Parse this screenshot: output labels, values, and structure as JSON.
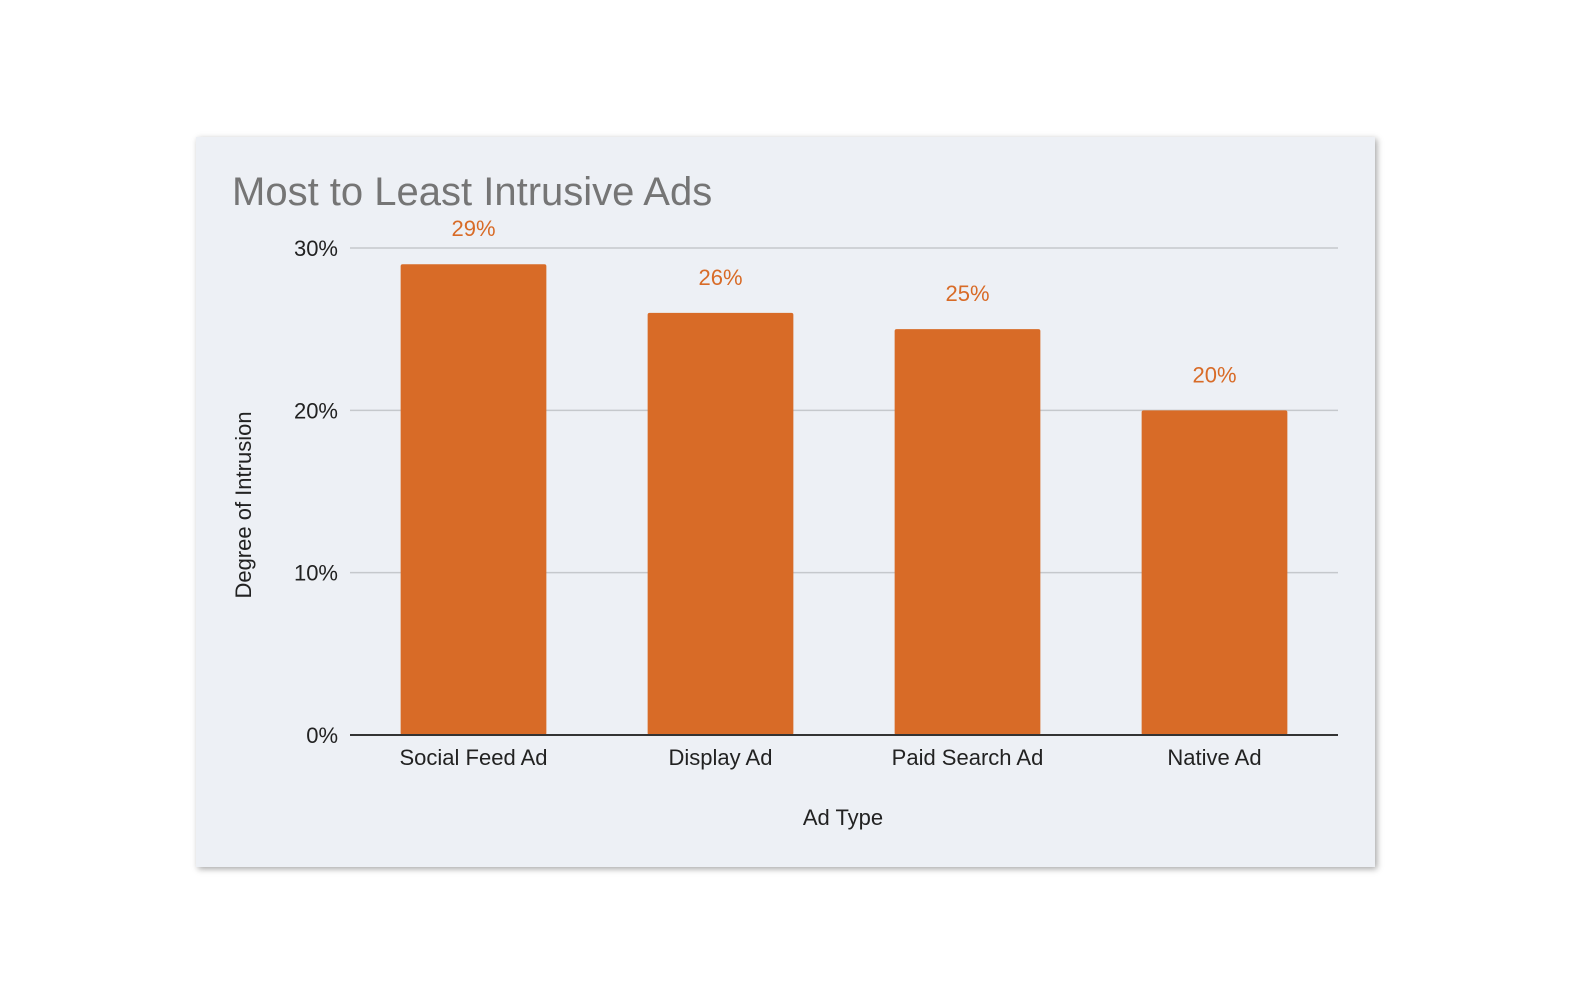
{
  "colors": {
    "bar": "#d86b27",
    "data_label": "#d86b27",
    "grid": "#c5c8cc",
    "baseline": "#333333",
    "card_background": "#edf0f5"
  },
  "chart_data": {
    "type": "bar",
    "title": "Most to Least Intrusive Ads",
    "xlabel": "Ad Type",
    "ylabel": "Degree of Intrusion",
    "categories": [
      "Social Feed Ad",
      "Display Ad",
      "Paid Search Ad",
      "Native Ad"
    ],
    "values": [
      29,
      26,
      25,
      20
    ],
    "data_labels": [
      "29%",
      "26%",
      "25%",
      "20%"
    ],
    "ylim": [
      0,
      30
    ],
    "yticks": [
      0,
      10,
      20,
      30
    ],
    "ytick_labels": [
      "0%",
      "10%",
      "20%",
      "30%"
    ],
    "grid": true,
    "legend": "none"
  }
}
